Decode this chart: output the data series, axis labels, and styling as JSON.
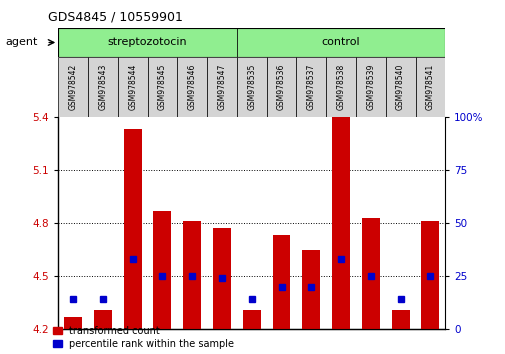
{
  "title": "GDS4845 / 10559901",
  "samples": [
    "GSM978542",
    "GSM978543",
    "GSM978544",
    "GSM978545",
    "GSM978546",
    "GSM978547",
    "GSM978535",
    "GSM978536",
    "GSM978537",
    "GSM978538",
    "GSM978539",
    "GSM978540",
    "GSM978541"
  ],
  "transformed_count": [
    4.27,
    4.31,
    5.33,
    4.87,
    4.81,
    4.77,
    4.31,
    4.73,
    4.65,
    5.4,
    4.83,
    4.31,
    4.81
  ],
  "percentile_rank": [
    14,
    14,
    33,
    25,
    25,
    24,
    14,
    20,
    20,
    33,
    25,
    14,
    25
  ],
  "groups": [
    {
      "label": "streptozotocin",
      "start": 0,
      "end": 5
    },
    {
      "label": "control",
      "start": 6,
      "end": 12
    }
  ],
  "group_label_prefix": "agent",
  "ylim_left": [
    4.2,
    5.4
  ],
  "ylim_right": [
    0,
    100
  ],
  "yticks_left": [
    4.2,
    4.5,
    4.8,
    5.1,
    5.4
  ],
  "yticks_right": [
    0,
    25,
    50,
    75,
    100
  ],
  "bar_color": "#CC0000",
  "percentile_color": "#0000CC",
  "bar_width": 0.6,
  "background_color": "#ffffff",
  "grid_color": "#000000",
  "tick_label_color_left": "#CC0000",
  "tick_label_color_right": "#0000CC",
  "baseline": 4.2,
  "cell_color": "#d4d4d4",
  "group_color": "#90EE90"
}
